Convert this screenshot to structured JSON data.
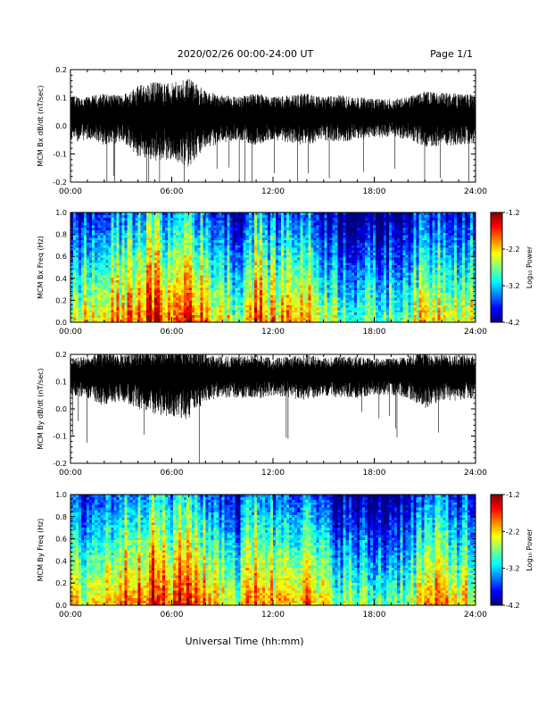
{
  "header": {
    "date_range": "2020/02/26  00:00-24:00 UT",
    "page": "Page 1/1"
  },
  "footer": {
    "xlabel": "Universal Time (hh:mm)"
  },
  "chart_data": [
    {
      "type": "line",
      "ylabel": "MCM Bx dB/dt (nT/sec)",
      "ylim": [
        -0.2,
        0.2
      ],
      "yticks": [
        "0.2",
        "0.1",
        "0.0",
        "-0.1",
        "-0.2"
      ],
      "xticks": [
        "00:00",
        "06:00",
        "12:00",
        "18:00",
        "24:00"
      ],
      "xlim_hours": [
        0,
        24
      ],
      "baseline": 0.04,
      "activity_profile": {
        "hours": [
          0,
          1,
          2,
          3,
          4,
          5,
          6,
          7,
          8,
          9,
          10,
          11,
          12,
          13,
          14,
          15,
          16,
          17,
          18,
          19,
          20,
          21,
          22,
          23,
          24
        ],
        "amplitude": [
          0.1,
          0.09,
          0.11,
          0.1,
          0.15,
          0.17,
          0.16,
          0.19,
          0.12,
          0.1,
          0.09,
          0.11,
          0.09,
          0.1,
          0.11,
          0.09,
          0.1,
          0.09,
          0.08,
          0.08,
          0.09,
          0.12,
          0.11,
          0.11,
          0.1
        ]
      }
    },
    {
      "type": "heatmap",
      "ylabel": "MCM Bx Freq (Hz)",
      "ylim": [
        0.0,
        1.0
      ],
      "yticks": [
        "1.0",
        "0.8",
        "0.6",
        "0.4",
        "0.2",
        "0.0"
      ],
      "xticks": [
        "00:00",
        "06:00",
        "12:00",
        "18:00",
        "24:00"
      ],
      "colorbar": {
        "label": "Log₁₀ Power",
        "range": [
          -4.2,
          -1.2
        ],
        "ticks": [
          "-1.2",
          "-2.2",
          "-3.2",
          "-4.2"
        ]
      },
      "power_profile": {
        "hours": [
          0,
          2,
          4,
          5,
          6,
          7,
          8,
          9,
          10,
          11,
          12,
          13,
          14,
          15,
          16,
          17,
          18,
          19,
          20,
          21,
          22,
          23,
          24
        ],
        "log_power_at_low_freq": [
          -2.4,
          -2.2,
          -1.7,
          -1.5,
          -2.0,
          -1.4,
          -2.1,
          -2.2,
          -2.6,
          -1.6,
          -2.2,
          -1.9,
          -2.0,
          -2.4,
          -2.6,
          -2.7,
          -2.8,
          -2.7,
          -2.5,
          -2.2,
          -2.1,
          -2.2,
          -2.3
        ]
      }
    },
    {
      "type": "line",
      "ylabel": "MCM By dB/dt (nT/sec)",
      "ylim": [
        -0.2,
        0.2
      ],
      "yticks": [
        "0.2",
        "0.1",
        "0.0",
        "-0.1",
        "-0.2"
      ],
      "xticks": [
        "00:00",
        "06:00",
        "12:00",
        "18:00",
        "24:00"
      ],
      "xlim_hours": [
        0,
        24
      ],
      "baseline": 0.13,
      "activity_profile": {
        "hours": [
          0,
          1,
          2,
          3,
          4,
          5,
          6,
          7,
          8,
          9,
          10,
          11,
          12,
          13,
          14,
          15,
          16,
          17,
          18,
          19,
          20,
          21,
          22,
          23,
          24
        ],
        "amplitude": [
          0.08,
          0.09,
          0.12,
          0.1,
          0.13,
          0.15,
          0.16,
          0.17,
          0.1,
          0.09,
          0.09,
          0.1,
          0.08,
          0.09,
          0.1,
          0.08,
          0.09,
          0.09,
          0.08,
          0.08,
          0.09,
          0.13,
          0.1,
          0.1,
          0.09
        ]
      }
    },
    {
      "type": "heatmap",
      "ylabel": "MCM By Freq (Hz)",
      "ylim": [
        0.0,
        1.0
      ],
      "yticks": [
        "1.0",
        "0.8",
        "0.6",
        "0.4",
        "0.2",
        "0.0"
      ],
      "xticks": [
        "00:00",
        "06:00",
        "12:00",
        "18:00",
        "24:00"
      ],
      "colorbar": {
        "label": "Log₁₀ Power",
        "range": [
          -4.2,
          -1.2
        ],
        "ticks": [
          "-1.2",
          "-2.2",
          "-3.2",
          "-4.2"
        ]
      },
      "power_profile": {
        "hours": [
          0,
          2,
          4,
          5,
          6,
          7,
          8,
          9,
          10,
          11,
          12,
          13,
          14,
          15,
          16,
          17,
          18,
          19,
          20,
          21,
          22,
          23,
          24
        ],
        "log_power_at_low_freq": [
          -2.4,
          -2.1,
          -1.6,
          -1.5,
          -1.9,
          -1.4,
          -2.0,
          -2.1,
          -2.5,
          -1.6,
          -2.1,
          -1.8,
          -2.0,
          -2.4,
          -2.6,
          -2.7,
          -2.8,
          -2.7,
          -2.5,
          -2.1,
          -2.0,
          -2.2,
          -2.3
        ]
      }
    }
  ]
}
